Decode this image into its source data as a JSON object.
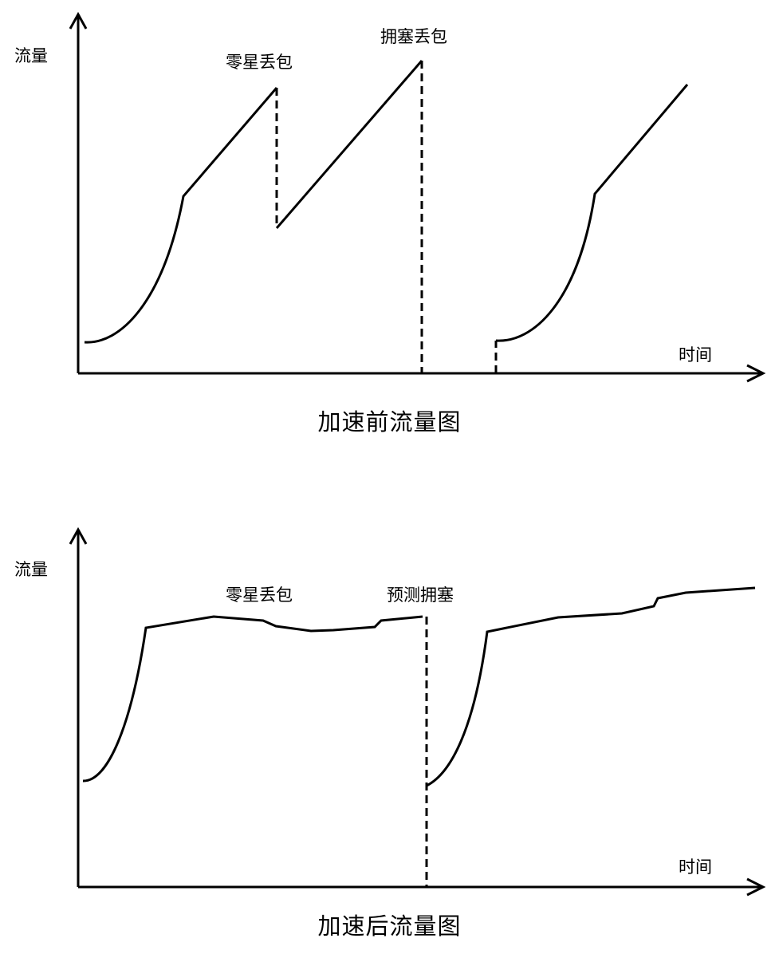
{
  "before": {
    "y_axis_label": "流量",
    "x_axis_label": "时间",
    "annotation_sporadic_loss": "零星丢包",
    "annotation_congestion_loss": "拥塞丢包",
    "caption": "加速前流量图"
  },
  "after": {
    "y_axis_label": "流量",
    "x_axis_label": "时间",
    "annotation_sporadic_loss": "零星丢包",
    "annotation_predict_congestion": "预测拥塞",
    "caption": "加速后流量图"
  },
  "colors": {
    "line": "#000000",
    "background": "#ffffff"
  }
}
